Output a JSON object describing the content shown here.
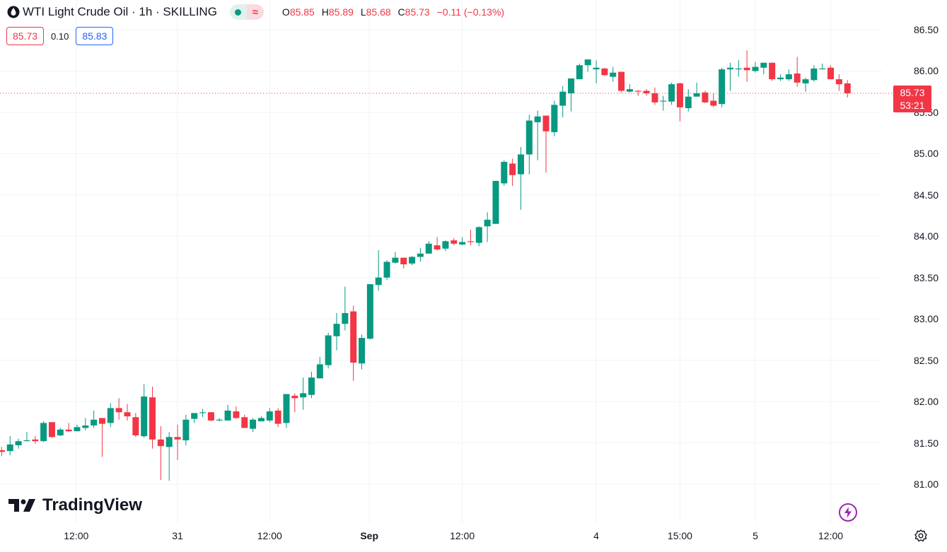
{
  "header": {
    "title": "WTI Light Crude Oil · 1h · SKILLING",
    "ohlc": {
      "o_label": "O",
      "o": "85.85",
      "h_label": "H",
      "h": "85.89",
      "l_label": "L",
      "l": "85.68",
      "c_label": "C",
      "c": "85.73",
      "change": "−0.11 (−0.13%)"
    },
    "bid": "85.73",
    "spread": "0.10",
    "ask": "85.83"
  },
  "price_tag": {
    "price": "85.73",
    "countdown": "53:21"
  },
  "logo": "TradingView",
  "colors": {
    "up": "#089981",
    "down": "#f23645",
    "grid": "#f0f3fa",
    "ask": "#2962ff",
    "bolt": "#9c27b0"
  },
  "chart_data": {
    "type": "candlestick",
    "title": "WTI Light Crude Oil · 1h · SKILLING",
    "ylim": [
      80.85,
      86.6
    ],
    "y_ticks": [
      "86.50",
      "86.00",
      "85.50",
      "85.00",
      "84.50",
      "84.00",
      "83.50",
      "83.00",
      "82.50",
      "82.00",
      "81.50",
      "81.00"
    ],
    "x_ticks": [
      {
        "label": "12:00",
        "index": 8.9,
        "bold": false
      },
      {
        "label": "31",
        "index": 21,
        "bold": false
      },
      {
        "label": "12:00",
        "index": 32,
        "bold": false
      },
      {
        "label": "Sep",
        "index": 43.9,
        "bold": true
      },
      {
        "label": "12:00",
        "index": 55,
        "bold": false
      },
      {
        "label": "4",
        "index": 71,
        "bold": false
      },
      {
        "label": "15:00",
        "index": 81,
        "bold": false
      },
      {
        "label": "5",
        "index": 90,
        "bold": false
      },
      {
        "label": "12:00",
        "index": 99,
        "bold": false
      }
    ],
    "last_price": 85.73,
    "candles_ohlc": [
      [
        81.41,
        81.45,
        81.34,
        81.39
      ],
      [
        81.4,
        81.58,
        81.35,
        81.48
      ],
      [
        81.47,
        81.55,
        81.43,
        81.52
      ],
      [
        81.52,
        81.63,
        81.52,
        81.53
      ],
      [
        81.54,
        81.58,
        81.49,
        81.52
      ],
      [
        81.52,
        81.76,
        81.51,
        81.74
      ],
      [
        81.75,
        81.75,
        81.56,
        81.57
      ],
      [
        81.59,
        81.68,
        81.58,
        81.66
      ],
      [
        81.66,
        81.74,
        81.63,
        81.64
      ],
      [
        81.64,
        81.72,
        81.64,
        81.69
      ],
      [
        81.68,
        81.8,
        81.65,
        81.71
      ],
      [
        81.71,
        81.89,
        81.68,
        81.78
      ],
      [
        81.8,
        81.8,
        81.33,
        81.73
      ],
      [
        81.74,
        81.98,
        81.69,
        81.92
      ],
      [
        81.92,
        82.04,
        81.78,
        81.87
      ],
      [
        81.87,
        81.97,
        81.77,
        81.82
      ],
      [
        81.81,
        81.86,
        81.57,
        81.59
      ],
      [
        81.58,
        82.21,
        81.56,
        82.06
      ],
      [
        82.05,
        82.18,
        81.43,
        81.54
      ],
      [
        81.54,
        81.7,
        81.05,
        81.46
      ],
      [
        81.45,
        81.63,
        81.04,
        81.57
      ],
      [
        81.57,
        81.72,
        81.29,
        81.54
      ],
      [
        81.53,
        81.84,
        81.47,
        81.78
      ],
      [
        81.79,
        81.86,
        81.74,
        81.86
      ],
      [
        81.86,
        81.91,
        81.81,
        81.87
      ],
      [
        81.87,
        81.87,
        81.76,
        81.77
      ],
      [
        81.77,
        81.8,
        81.76,
        81.78
      ],
      [
        81.77,
        81.96,
        81.77,
        81.89
      ],
      [
        81.88,
        81.94,
        81.79,
        81.8
      ],
      [
        81.81,
        81.84,
        81.68,
        81.68
      ],
      [
        81.67,
        81.8,
        81.63,
        81.78
      ],
      [
        81.76,
        81.82,
        81.76,
        81.8
      ],
      [
        81.77,
        81.92,
        81.75,
        81.88
      ],
      [
        81.89,
        81.92,
        81.69,
        81.73
      ],
      [
        81.74,
        82.09,
        81.68,
        82.09
      ],
      [
        82.07,
        82.1,
        81.87,
        82.04
      ],
      [
        82.05,
        82.29,
        81.9,
        82.1
      ],
      [
        82.08,
        82.36,
        82.04,
        82.29
      ],
      [
        82.28,
        82.54,
        82.28,
        82.45
      ],
      [
        82.44,
        82.83,
        82.4,
        82.8
      ],
      [
        82.79,
        83.07,
        82.62,
        82.94
      ],
      [
        82.94,
        83.39,
        82.86,
        83.07
      ],
      [
        83.09,
        83.16,
        82.25,
        82.47
      ],
      [
        82.46,
        82.81,
        82.39,
        82.77
      ],
      [
        82.76,
        83.42,
        82.75,
        83.42
      ],
      [
        83.41,
        83.83,
        83.34,
        83.5
      ],
      [
        83.5,
        83.71,
        83.47,
        83.69
      ],
      [
        83.68,
        83.81,
        83.67,
        83.74
      ],
      [
        83.74,
        83.74,
        83.61,
        83.66
      ],
      [
        83.67,
        83.76,
        83.65,
        83.75
      ],
      [
        83.75,
        83.86,
        83.69,
        83.79
      ],
      [
        83.79,
        83.94,
        83.79,
        83.91
      ],
      [
        83.89,
        83.99,
        83.83,
        83.84
      ],
      [
        83.85,
        83.95,
        83.82,
        83.94
      ],
      [
        83.95,
        83.98,
        83.89,
        83.91
      ],
      [
        83.9,
        83.99,
        83.89,
        83.93
      ],
      [
        83.94,
        84.08,
        83.89,
        83.93
      ],
      [
        83.92,
        84.12,
        83.88,
        84.11
      ],
      [
        84.12,
        84.29,
        83.93,
        84.2
      ],
      [
        84.15,
        84.67,
        84.15,
        84.67
      ],
      [
        84.64,
        84.92,
        84.61,
        84.9
      ],
      [
        84.88,
        84.94,
        84.61,
        84.74
      ],
      [
        84.75,
        85.08,
        84.32,
        84.99
      ],
      [
        84.99,
        85.47,
        84.75,
        85.4
      ],
      [
        85.38,
        85.52,
        84.92,
        85.45
      ],
      [
        85.46,
        85.46,
        84.77,
        85.27
      ],
      [
        85.26,
        85.64,
        85.21,
        85.59
      ],
      [
        85.58,
        85.82,
        85.44,
        85.75
      ],
      [
        85.73,
        85.91,
        85.51,
        85.91
      ],
      [
        85.9,
        86.09,
        85.9,
        86.07
      ],
      [
        86.07,
        86.14,
        85.99,
        86.14
      ],
      [
        86.02,
        86.13,
        85.85,
        86.04
      ],
      [
        86.03,
        86.04,
        85.94,
        85.95
      ],
      [
        85.93,
        86.05,
        85.87,
        85.98
      ],
      [
        85.99,
        85.99,
        85.74,
        85.76
      ],
      [
        85.75,
        85.84,
        85.74,
        85.78
      ],
      [
        85.76,
        85.77,
        85.7,
        85.75
      ],
      [
        85.76,
        85.78,
        85.7,
        85.73
      ],
      [
        85.73,
        85.8,
        85.59,
        85.62
      ],
      [
        85.63,
        85.7,
        85.52,
        85.64
      ],
      [
        85.63,
        85.86,
        85.59,
        85.84
      ],
      [
        85.85,
        85.86,
        85.39,
        85.56
      ],
      [
        85.55,
        85.78,
        85.51,
        85.69
      ],
      [
        85.69,
        85.86,
        85.69,
        85.73
      ],
      [
        85.74,
        85.76,
        85.61,
        85.62
      ],
      [
        85.64,
        85.73,
        85.56,
        85.58
      ],
      [
        85.6,
        86.04,
        85.56,
        86.02
      ],
      [
        86.02,
        86.1,
        85.76,
        86.04
      ],
      [
        86.02,
        86.13,
        85.93,
        86.03
      ],
      [
        86.04,
        86.25,
        85.87,
        86.01
      ],
      [
        86.0,
        86.11,
        85.98,
        86.05
      ],
      [
        86.04,
        86.1,
        85.96,
        86.1
      ],
      [
        86.1,
        86.1,
        85.88,
        85.9
      ],
      [
        85.9,
        85.96,
        85.88,
        85.92
      ],
      [
        85.9,
        86.02,
        85.88,
        85.96
      ],
      [
        85.97,
        86.17,
        85.81,
        85.86
      ],
      [
        85.85,
        85.92,
        85.75,
        85.9
      ],
      [
        85.89,
        86.07,
        85.87,
        86.03
      ],
      [
        86.02,
        86.09,
        86.02,
        86.03
      ],
      [
        86.04,
        86.07,
        85.9,
        85.9
      ],
      [
        85.9,
        85.96,
        85.76,
        85.84
      ],
      [
        85.85,
        85.89,
        85.68,
        85.73
      ]
    ]
  }
}
